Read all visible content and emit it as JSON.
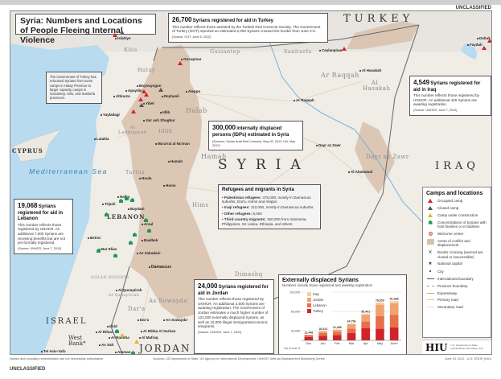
{
  "classification": "UNCLASSIFIED",
  "title": "Syria: Numbers and Locations of People Fleeing Internal Violence",
  "boxes": {
    "turkey": {
      "number": "26,700",
      "heading": "Syrians registered for aid in Turkey",
      "body": "This number reflects those assisted by the Turkish Red Crescent Society. The Government of Turkey (GOT) reported an estimated 2,000 Syrians crossed the border from June 2-5.",
      "source": "(Source: GOT, June 5, 2012)"
    },
    "iraq": {
      "number": "4,549",
      "heading": "Syrians registered for aid in Iraq",
      "body": "This number reflects those registered by UNHCR. An additional 425 Syrians are awaiting registration.",
      "source": "(Source: UNHCR, June 7, 2012)"
    },
    "idp": {
      "number": "300,000",
      "heading": "internally displaced persons (IDPs) estimated in Syria",
      "source": "(Sources: Syrian Arab Red Crescent, May 30, 2012; UN, May 2012)"
    },
    "lebanon": {
      "number": "19,068",
      "heading": "Syrians registered for aid in Lebanon",
      "body": "This number reflects those registered by UNHCR. An additional 7,000 Syrians are receiving benefits but are not yet formally registered.",
      "source": "(Source: UNHCR, June 7, 2012)"
    },
    "jordan": {
      "number": "24,000",
      "heading": "Syrians registered for aid in Jordan",
      "body": "This number reflects those registered by UNHCR. An additional 2,500 Syrians are awaiting registration. The Government of Jordan estimates a much higher number of 122,000 externally displaced Syrians, as well as 10,000 illegal immigrants/economic emigrants.",
      "source": "(Source: UNHCR, June 7, 2012)"
    },
    "hatay": {
      "body": "The Government of Turkey has relocated Syrians from some camps in Hatay Province to larger capacity camps in Gaziantep, Kilis, and Sanliurfa provinces."
    },
    "refugees": {
      "heading": "Refugees and migrants in Syria",
      "items": [
        {
          "label": "Palestinian refugees:",
          "text": "475,000, mostly in Damascus suburbs, Dar'a, Homs and Aleppo"
        },
        {
          "label": "Iraqi refugees:",
          "text": "112,000, mostly in Damascus suburbs"
        },
        {
          "label": "Other refugees:",
          "text": "8,000"
        },
        {
          "label": "Third country migrants:",
          "text": "150,000 from Indonesia, Philippines, Sri Lanka, Ethiopia, and others"
        }
      ]
    }
  },
  "map": {
    "countries": [
      "TURKEY",
      "SYRIA",
      "IRAQ",
      "LEBANON",
      "ISRAEL",
      "JORDAN",
      "CYPRUS",
      "West Bank*"
    ],
    "sea": "Mediterranean Sea",
    "provinces": [
      "Kilis",
      "Gaziantep",
      "Sanliurfa",
      "Hatay",
      "Ar Raqqah",
      "Al Hasakah",
      "Halab",
      "Idlib",
      "Al Ladhiqiyah",
      "Hamah",
      "Tartus",
      "Hims",
      "Dayr az Zawr",
      "Dimashq",
      "As Suwayda'",
      "Dar'a",
      "Al Qunaytirah",
      "GOLAN HEIGHTS"
    ],
    "cities": [
      "Islahiye",
      "Oncupinar",
      "Ceylanpinar",
      "Dahuk",
      "Faydah",
      "Aleppo",
      "Ar Raqqah",
      "Al Hasakah",
      "Latakia",
      "Jisr ash Shughur",
      "Idlib",
      "Ma'arrat al Nu'man",
      "Hamah",
      "Homs",
      "Houla",
      "Halba",
      "Tripoli",
      "Baydani",
      "Arsal",
      "Baalbek",
      "Beirut",
      "Bar Elias",
      "Az Zabadani",
      "Damascus",
      "Al Qunaytirah",
      "Dar'a",
      "As Suwayda'",
      "Irbid",
      "Al Mafraq",
      "Ar Ramtha",
      "Amman",
      "As Salt",
      "Tel Aviv-Yafo",
      "Dayr az Zawr",
      "Al Abukamal",
      "Yayladagi",
      "Boynuyogun",
      "Apaydin",
      "Altinozu",
      "Reyhanli",
      "Yibel",
      "Al Rifaai",
      "Al Ribba Al Sarhan"
    ]
  },
  "legend": {
    "title": "Camps and locations",
    "items": [
      {
        "icon": "occupied-camp-red-triangle",
        "label": "Occupied camp"
      },
      {
        "icon": "closed-camp-white-triangle",
        "label": "Closed camp"
      },
      {
        "icon": "camp-under-construction-yellow-triangle",
        "label": "Camp under construction"
      },
      {
        "icon": "green-house",
        "label": "Concentrations of Syrians with host families or in facilities"
      },
      {
        "icon": "welcome-center-red-circle",
        "label": "Welcome center"
      },
      {
        "icon": "tan-area",
        "label": "Areas of conflict and displacement"
      },
      {
        "icon": "border-crossing",
        "label": "Border crossing (several are closed or inaccessible)"
      },
      {
        "icon": "star",
        "label": "National capital"
      },
      {
        "icon": "dot",
        "label": "City"
      },
      {
        "icon": "dark-line",
        "label": "International boundary"
      },
      {
        "icon": "dashed-line",
        "label": "Province boundary"
      },
      {
        "icon": "orange-line",
        "label": "Expressway"
      },
      {
        "icon": "tan-line",
        "label": "Primary road"
      },
      {
        "icon": "light-line",
        "label": "Secondary road"
      }
    ]
  },
  "logo": {
    "text": "HIU",
    "sub": "U.S. Department of State Humanitarian Information Unit"
  },
  "colors": {
    "conflict_area": "#d8c1ab",
    "sea": "#b8dbf0",
    "occupied_camp": "#d2232a",
    "host_families": "#1f9a5a",
    "turkey_series": "#d2232a",
    "lebanon_series": "#e5704a",
    "jordan_series": "#efa373",
    "iraq_series": "#f6d09a"
  },
  "chart_data": {
    "type": "bar",
    "stacked": true,
    "title": "Externally displaced Syrians",
    "subtitle": "Numbers include those registered and awaiting registration",
    "categories": [
      "Dec",
      "Jan",
      "Feb",
      "Mar",
      "Apr",
      "May",
      "June*"
    ],
    "totals": [
      11448,
      19313,
      22486,
      34756,
      55401,
      78653,
      81368
    ],
    "total_labels": [
      "11,448",
      "19,313",
      "22,486",
      "34,756",
      "55,401",
      "78,653",
      "81,368"
    ],
    "series": [
      {
        "name": "Turkey",
        "values": [
          7000,
          9500,
          11000,
          15500,
          25000,
          24000,
          27000
        ]
      },
      {
        "name": "Lebanon",
        "values": [
          4000,
          6000,
          7000,
          9000,
          14000,
          26000,
          26000
        ]
      },
      {
        "name": "Jordan",
        "values": [
          400,
          3500,
          4000,
          9000,
          14000,
          24000,
          24000
        ]
      },
      {
        "name": "Iraq",
        "values": [
          48,
          313,
          486,
          1256,
          2401,
          4653,
          4368
        ]
      }
    ],
    "yticks": [
      "20,000",
      "60,000",
      "100,000"
    ],
    "ytick_values": [
      20000,
      60000,
      100000
    ],
    "ylim": [
      0,
      100000
    ],
    "grid": true,
    "legend": "top-left",
    "footnote": "*As of June 11"
  },
  "footer": {
    "left": "Names and boundary representation are not necessarily authoritative",
    "center": "Sources: US Department of State, US Agency for International Development, UNHCR, Internal Displacement Monitoring Centre",
    "right": "June 15, 2012 - U.S. STATE (HIU)"
  }
}
